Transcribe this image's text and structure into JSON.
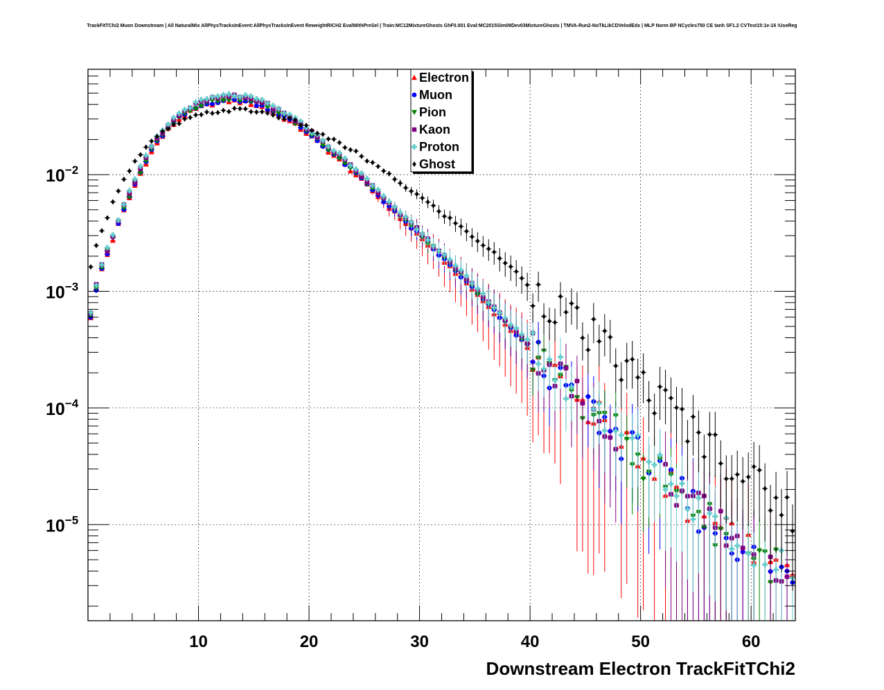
{
  "chart_data": {
    "type": "scatter",
    "title": "TrackFitTChi2 Muon Downstream | All NaturalMix AllPhysTracksInEvent:AllPhysTracksInEvent ReweightRICH2 EvalWithPreSel | Train:MC12MixtureGhosts GhF0.001 Eval:MC2015Sim09Dev03MixtureGhosts | TMVA-Run2-NoTkLikCDVelodEdx | MLP Norm BP NCycles750 CE tanh SF1.2 CVTest15:1e-16 !UseReg",
    "xlabel": "Downstream Electron TrackFitTChi2",
    "ylabel": "",
    "xlim": [
      0,
      64
    ],
    "ylim": [
      1.5e-06,
      0.08
    ],
    "yscale": "log",
    "grid": true,
    "legend_position": "top-center",
    "x_ticks": [
      {
        "value": 10,
        "label": "10"
      },
      {
        "value": 20,
        "label": "20"
      },
      {
        "value": 30,
        "label": "30"
      },
      {
        "value": 40,
        "label": "40"
      },
      {
        "value": 50,
        "label": "50"
      },
      {
        "value": 60,
        "label": "60"
      }
    ],
    "y_ticks": [
      {
        "value": 0.01,
        "base": "10",
        "exp": "−2"
      },
      {
        "value": 0.001,
        "base": "10",
        "exp": "−3"
      },
      {
        "value": 0.0001,
        "base": "10",
        "exp": "−4"
      },
      {
        "value": 1e-05,
        "base": "10",
        "exp": "−5"
      }
    ],
    "series": [
      {
        "name": "Electron",
        "color": "#ff0000",
        "marker": "triangle-up",
        "dy": -0.02,
        "errScale": 1.9,
        "endX": 64
      },
      {
        "name": "Muon",
        "color": "#0000ff",
        "marker": "circle",
        "dy": -0.01,
        "errScale": 1.2,
        "endX": 64
      },
      {
        "name": "Pion",
        "color": "#008000",
        "marker": "triangle-down",
        "dy": 0.0,
        "errScale": 1.0,
        "endX": 64
      },
      {
        "name": "Kaon",
        "color": "#800080",
        "marker": "square",
        "dy": 0.02,
        "errScale": 1.3,
        "endX": 64
      },
      {
        "name": "Proton",
        "color": "#66cccc",
        "marker": "cross",
        "dy": 0.03,
        "errScale": 1.0,
        "endX": 64
      },
      {
        "name": "Ghost",
        "color": "#000000",
        "marker": "diamond",
        "dy": 0.0,
        "errScale": 0.7,
        "endX": 64
      }
    ],
    "reference_points": {
      "signal": [
        [
          0.2,
          0.0006
        ],
        [
          1,
          0.0014
        ],
        [
          2,
          0.0025
        ],
        [
          3,
          0.0045
        ],
        [
          4,
          0.0075
        ],
        [
          5,
          0.012
        ],
        [
          6,
          0.018
        ],
        [
          7,
          0.024
        ],
        [
          8,
          0.03
        ],
        [
          9,
          0.035
        ],
        [
          10,
          0.039
        ],
        [
          11,
          0.042
        ],
        [
          12,
          0.044
        ],
        [
          13,
          0.045
        ],
        [
          14,
          0.044
        ],
        [
          15,
          0.042
        ],
        [
          16,
          0.039
        ],
        [
          17,
          0.035
        ],
        [
          18,
          0.031
        ],
        [
          19,
          0.027
        ],
        [
          20,
          0.023
        ],
        [
          22,
          0.016
        ],
        [
          24,
          0.011
        ],
        [
          26,
          0.0072
        ],
        [
          28,
          0.0047
        ],
        [
          30,
          0.0031
        ],
        [
          32,
          0.002
        ],
        [
          34,
          0.0013
        ],
        [
          36,
          0.00082
        ],
        [
          38,
          0.00052
        ],
        [
          40,
          0.00033
        ],
        [
          42,
          0.00021
        ],
        [
          44,
          0.000135
        ],
        [
          46,
          8.8e-05
        ],
        [
          48,
          5.8e-05
        ],
        [
          50,
          3.8e-05
        ],
        [
          52,
          2.5e-05
        ],
        [
          54,
          1.7e-05
        ],
        [
          56,
          1.1e-05
        ],
        [
          58,
          8e-06
        ],
        [
          60,
          6e-06
        ],
        [
          62,
          4.5e-06
        ],
        [
          64,
          3.5e-06
        ]
      ],
      "ghost": [
        [
          0.2,
          0.0015
        ],
        [
          1,
          0.003
        ],
        [
          2,
          0.005
        ],
        [
          3,
          0.0085
        ],
        [
          4,
          0.012
        ],
        [
          5,
          0.016
        ],
        [
          6,
          0.02
        ],
        [
          7,
          0.024
        ],
        [
          8,
          0.027
        ],
        [
          9,
          0.03
        ],
        [
          10,
          0.032
        ],
        [
          11,
          0.034
        ],
        [
          12,
          0.035
        ],
        [
          13,
          0.036
        ],
        [
          14,
          0.036
        ],
        [
          15,
          0.035
        ],
        [
          16,
          0.034
        ],
        [
          17,
          0.032
        ],
        [
          18,
          0.03
        ],
        [
          19,
          0.028
        ],
        [
          20,
          0.025
        ],
        [
          22,
          0.02
        ],
        [
          24,
          0.016
        ],
        [
          26,
          0.012
        ],
        [
          28,
          0.0088
        ],
        [
          30,
          0.0065
        ],
        [
          32,
          0.0047
        ],
        [
          34,
          0.0034
        ],
        [
          36,
          0.0024
        ],
        [
          38,
          0.0017
        ],
        [
          40,
          0.0011
        ],
        [
          42,
          0.00078
        ],
        [
          44,
          0.00054
        ],
        [
          46,
          0.00037
        ],
        [
          48,
          0.00025
        ],
        [
          50,
          0.00017
        ],
        [
          52,
          0.00011
        ],
        [
          54,
          7.5e-05
        ],
        [
          56,
          5.2e-05
        ],
        [
          58,
          3.5e-05
        ],
        [
          60,
          2.4e-05
        ],
        [
          62,
          1.7e-05
        ],
        [
          64,
          1.2e-05
        ]
      ]
    }
  }
}
